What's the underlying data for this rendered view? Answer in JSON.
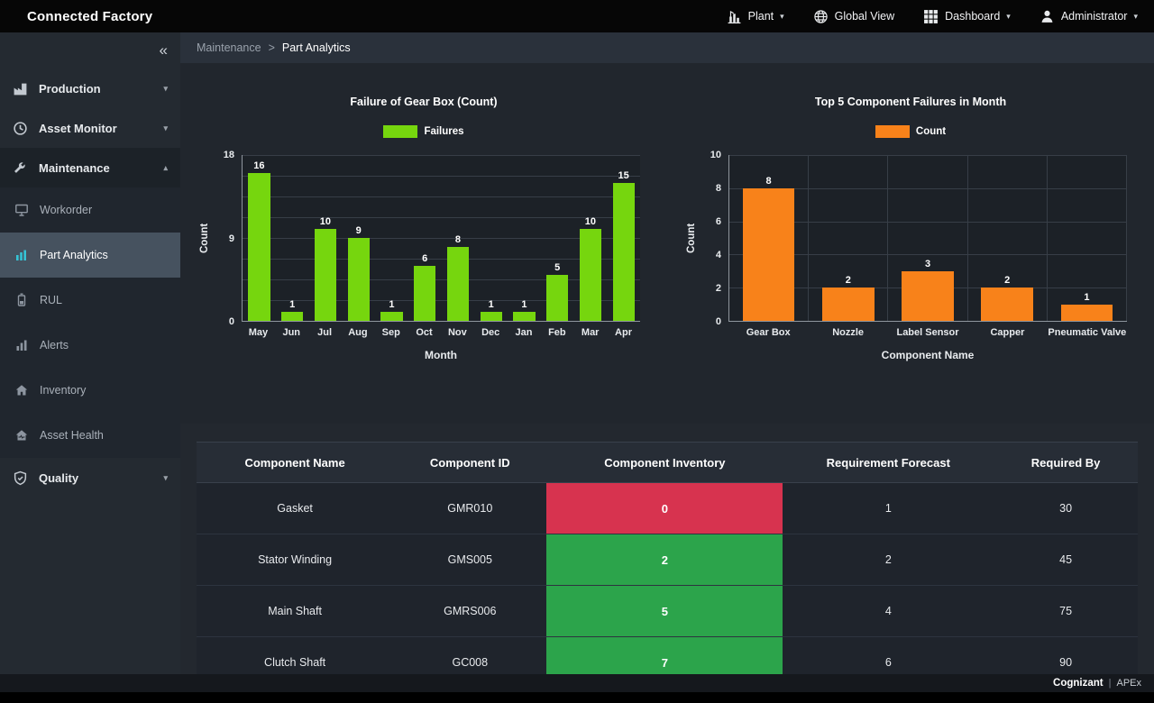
{
  "topbar": {
    "title": "Connected Factory",
    "menus": [
      {
        "label": "Plant"
      },
      {
        "label": "Global View"
      },
      {
        "label": "Dashboard"
      },
      {
        "label": "Administrator"
      }
    ]
  },
  "sidebar": {
    "items": [
      {
        "label": "Production"
      },
      {
        "label": "Asset Monitor"
      },
      {
        "label": "Maintenance"
      },
      {
        "label": "Workorder"
      },
      {
        "label": "Part Analytics"
      },
      {
        "label": "RUL"
      },
      {
        "label": "Alerts"
      },
      {
        "label": "Inventory"
      },
      {
        "label": "Asset Health"
      },
      {
        "label": "Quality"
      }
    ]
  },
  "breadcrumb": {
    "parent": "Maintenance",
    "separator": ">",
    "current": "Part Analytics"
  },
  "chart_data": [
    {
      "type": "bar",
      "title": "Failure of Gear Box (Count)",
      "legend": "Failures",
      "color": "#76d60e",
      "categories": [
        "May",
        "Jun",
        "Jul",
        "Aug",
        "Sep",
        "Oct",
        "Nov",
        "Dec",
        "Jan",
        "Feb",
        "Mar",
        "Apr"
      ],
      "values": [
        16,
        1,
        10,
        9,
        1,
        6,
        8,
        1,
        1,
        5,
        10,
        15
      ],
      "xlabel": "Month",
      "ylabel": "Count",
      "ylim": [
        0,
        18
      ],
      "yticks": [
        0,
        9,
        18
      ],
      "grid_divisions": 8,
      "vertical_grid": false,
      "legend_position": "top"
    },
    {
      "type": "bar",
      "title": "Top 5 Component Failures in Month",
      "legend": "Count",
      "color": "#f8821a",
      "categories": [
        "Gear Box",
        "Nozzle",
        "Label Sensor",
        "Capper",
        "Pneumatic Valve"
      ],
      "values": [
        8,
        2,
        3,
        2,
        1
      ],
      "xlabel": "Component Name",
      "ylabel": "Count",
      "ylim": [
        0,
        10
      ],
      "yticks": [
        0,
        2,
        4,
        6,
        8,
        10
      ],
      "grid_divisions": 5,
      "vertical_grid": true,
      "legend_position": "top"
    }
  ],
  "table": {
    "headers": [
      "Component Name",
      "Component ID",
      "Component Inventory",
      "Requirement Forecast",
      "Required By"
    ],
    "rows": [
      {
        "name": "Gasket",
        "id": "GMR010",
        "inventory": 0,
        "inventory_color": "red",
        "forecast": 1,
        "required_by": 30
      },
      {
        "name": "Stator Winding",
        "id": "GMS005",
        "inventory": 2,
        "inventory_color": "green",
        "forecast": 2,
        "required_by": 45
      },
      {
        "name": "Main Shaft",
        "id": "GMRS006",
        "inventory": 5,
        "inventory_color": "green",
        "forecast": 4,
        "required_by": 75
      },
      {
        "name": "Clutch Shaft",
        "id": "GC008",
        "inventory": 7,
        "inventory_color": "green",
        "forecast": 6,
        "required_by": 90
      }
    ]
  },
  "colors": {
    "red": "#d7334f",
    "green": "#2ca44b",
    "bar_green": "#76d60e",
    "bar_orange": "#f8821a",
    "active_icon_teal": "#35c3d5"
  },
  "footer": {
    "brand": "Cognizant",
    "separator": "|",
    "product": "APEx"
  }
}
